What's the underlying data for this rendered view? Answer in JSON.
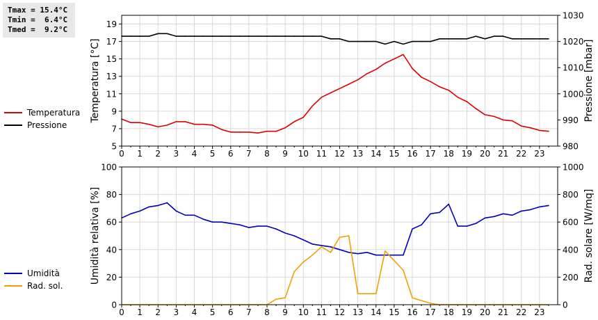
{
  "stats": {
    "tmax": "Tmax = 15.4°C",
    "tmin": "Tmin =  6.4°C",
    "tmed": "Tmed =  9.2°C"
  },
  "legend": {
    "temperatura": "Temperatura",
    "pressione": "Pressione",
    "umidita": "Umidità",
    "radsol": "Rad. sol."
  },
  "colors": {
    "temperatura": "#dd0000",
    "pressione": "#000000",
    "umidita": "#0000bb",
    "radsol": "#f0a000"
  },
  "chart_data": [
    {
      "type": "line",
      "x_ticks": [
        "0",
        "1",
        "2",
        "3",
        "4",
        "5",
        "6",
        "7",
        "8",
        "9",
        "10",
        "11",
        "12",
        "13",
        "14",
        "15",
        "16",
        "17",
        "18",
        "19",
        "20",
        "21",
        "22",
        "23"
      ],
      "xlim": [
        0,
        24
      ],
      "ylabel_left": "Temperatura [°C]",
      "ylim_left": [
        5,
        20
      ],
      "yticks_left": [
        "5",
        "7",
        "9",
        "11",
        "13",
        "15",
        "17",
        "19"
      ],
      "ylabel_right": "Pressione [mbar]",
      "ylim_right": [
        980,
        1030
      ],
      "yticks_right": [
        "980",
        "990",
        "1000",
        "1010",
        "1020",
        "1030"
      ],
      "grid": true,
      "series": [
        {
          "name": "Temperatura",
          "axis": "left",
          "x": [
            0,
            0.5,
            1,
            1.5,
            2,
            2.5,
            3,
            3.5,
            4,
            4.5,
            5,
            5.5,
            6,
            6.5,
            7,
            7.5,
            8,
            8.5,
            9,
            9.5,
            10,
            10.5,
            11,
            11.5,
            12,
            12.5,
            13,
            13.5,
            14,
            14.5,
            15,
            15.5,
            16,
            16.5,
            17,
            17.5,
            18,
            18.5,
            19,
            19.5,
            20,
            20.5,
            21,
            21.5,
            22,
            22.5,
            23,
            23.5
          ],
          "y": [
            8.1,
            7.7,
            7.7,
            7.5,
            7.2,
            7.4,
            7.8,
            7.8,
            7.5,
            7.5,
            7.4,
            6.9,
            6.6,
            6.6,
            6.6,
            6.5,
            6.7,
            6.7,
            7.1,
            7.8,
            8.3,
            9.6,
            10.6,
            11.1,
            11.6,
            12.1,
            12.6,
            13.3,
            13.8,
            14.5,
            15.0,
            15.5,
            13.9,
            12.9,
            12.4,
            11.8,
            11.4,
            10.6,
            10.1,
            9.3,
            8.6,
            8.4,
            8.0,
            7.9,
            7.3,
            7.1,
            6.8,
            6.7
          ]
        },
        {
          "name": "Pressione",
          "axis": "right",
          "x": [
            0,
            0.5,
            1,
            1.5,
            2,
            2.5,
            3,
            3.5,
            4,
            4.5,
            5,
            5.5,
            6,
            6.5,
            7,
            7.5,
            8,
            8.5,
            9,
            9.5,
            10,
            10.5,
            11,
            11.5,
            12,
            12.5,
            13,
            13.5,
            14,
            14.5,
            15,
            15.5,
            16,
            16.5,
            17,
            17.5,
            18,
            18.5,
            19,
            19.5,
            20,
            20.5,
            21,
            21.5,
            22,
            22.5,
            23,
            23.5
          ],
          "y": [
            1022,
            1022,
            1022,
            1022,
            1023,
            1023,
            1022,
            1022,
            1022,
            1022,
            1022,
            1022,
            1022,
            1022,
            1022,
            1022,
            1022,
            1022,
            1022,
            1022,
            1022,
            1022,
            1022,
            1021,
            1021,
            1020,
            1020,
            1020,
            1020,
            1019,
            1020,
            1019,
            1020,
            1020,
            1020,
            1021,
            1021,
            1021,
            1021,
            1022,
            1021,
            1022,
            1022,
            1021,
            1021,
            1021,
            1021,
            1021
          ]
        }
      ]
    },
    {
      "type": "line",
      "x_ticks": [
        "0",
        "1",
        "2",
        "3",
        "4",
        "5",
        "6",
        "7",
        "8",
        "9",
        "10",
        "11",
        "12",
        "13",
        "14",
        "15",
        "16",
        "17",
        "18",
        "19",
        "20",
        "21",
        "22",
        "23"
      ],
      "xlim": [
        0,
        24
      ],
      "ylabel_left": "Umidità relativa [%]",
      "ylim_left": [
        0,
        100
      ],
      "yticks_left": [
        "0",
        "20",
        "40",
        "60",
        "80",
        "100"
      ],
      "ylabel_right": "Rad. solare [W/mq]",
      "ylim_right": [
        0,
        1000
      ],
      "yticks_right": [
        "0",
        "200",
        "400",
        "600",
        "800",
        "1000"
      ],
      "grid": true,
      "series": [
        {
          "name": "Umidità",
          "axis": "left",
          "x": [
            0,
            0.5,
            1,
            1.5,
            2,
            2.5,
            3,
            3.5,
            4,
            4.5,
            5,
            5.5,
            6,
            6.5,
            7,
            7.5,
            8,
            8.5,
            9,
            9.5,
            10,
            10.5,
            11,
            11.5,
            12,
            12.5,
            13,
            13.5,
            14,
            14.5,
            15,
            15.5,
            16,
            16.5,
            17,
            17.5,
            18,
            18.5,
            19,
            19.5,
            20,
            20.5,
            21,
            21.5,
            22,
            22.5,
            23,
            23.5
          ],
          "y": [
            63,
            66,
            68,
            71,
            72,
            74,
            68,
            65,
            65,
            62,
            60,
            60,
            59,
            58,
            56,
            57,
            57,
            55,
            52,
            50,
            47,
            44,
            43,
            42,
            40,
            38,
            37,
            38,
            36,
            36,
            36,
            36,
            55,
            58,
            66,
            67,
            73,
            57,
            57,
            59,
            63,
            64,
            66,
            65,
            68,
            69,
            71,
            72
          ]
        },
        {
          "name": "Rad. sol.",
          "axis": "right",
          "x": [
            0,
            0.5,
            1,
            1.5,
            2,
            2.5,
            3,
            3.5,
            4,
            4.5,
            5,
            5.5,
            6,
            6.5,
            7,
            7.5,
            8,
            8.5,
            9,
            9.5,
            10,
            10.5,
            11,
            11.5,
            12,
            12.5,
            13,
            13.5,
            14,
            14.5,
            15,
            15.5,
            16,
            16.5,
            17,
            17.5,
            18,
            18.5,
            19,
            19.5,
            20,
            20.5,
            21,
            21.5,
            22,
            22.5,
            23,
            23.5
          ],
          "y": [
            0,
            0,
            0,
            0,
            0,
            0,
            0,
            0,
            0,
            0,
            0,
            0,
            0,
            0,
            0,
            0,
            0,
            40,
            50,
            240,
            310,
            360,
            420,
            380,
            490,
            500,
            80,
            80,
            80,
            390,
            320,
            250,
            50,
            30,
            10,
            0,
            0,
            0,
            0,
            0,
            0,
            0,
            0,
            0,
            0,
            0,
            0,
            0
          ]
        }
      ]
    }
  ]
}
